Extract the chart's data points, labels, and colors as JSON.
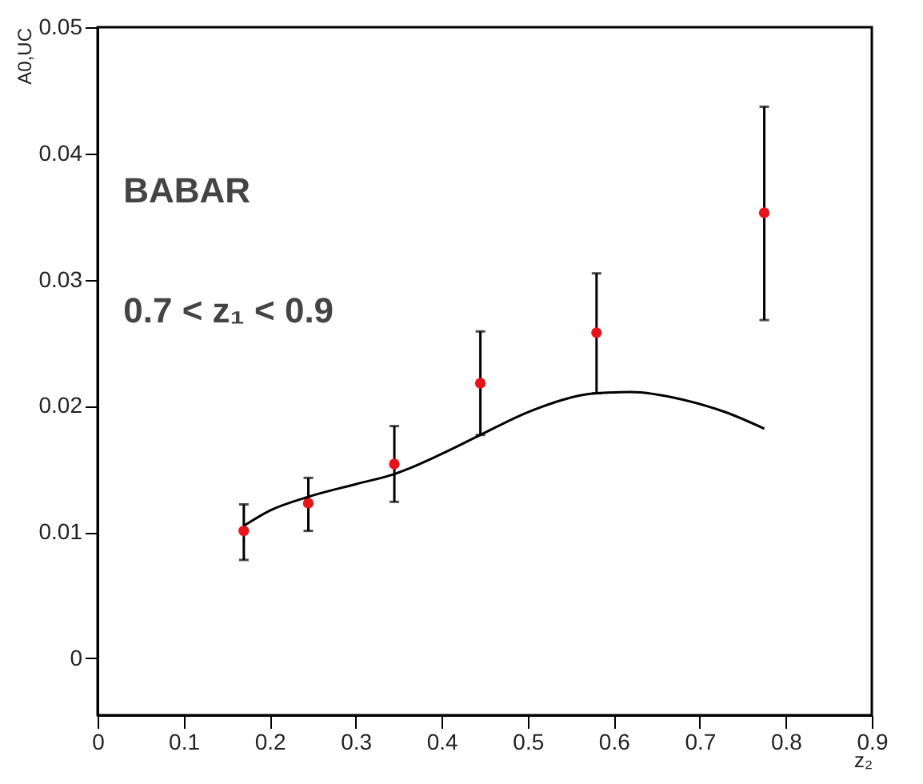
{
  "chart_data": {
    "type": "scatter",
    "xlabel": "z₂",
    "ylabel": "A0,UC",
    "annotations": [
      "BABAR",
      "0.7 < z₁ < 0.9"
    ],
    "xlim": [
      0,
      0.9
    ],
    "xticks": [
      0,
      0.1,
      0.2,
      0.3,
      0.4,
      0.5,
      0.6,
      0.7,
      0.8,
      0.9
    ],
    "ylim": [
      -0.0045,
      0.05
    ],
    "yticks": [
      0,
      0.01,
      0.02,
      0.03,
      0.04,
      0.05
    ],
    "grid": false,
    "marker": "circle",
    "series": [
      {
        "color": "#e8141c",
        "x": [
          0.17,
          0.245,
          0.345,
          0.445,
          0.58,
          0.775
        ],
        "values": [
          0.0101,
          0.0123,
          0.0154,
          0.0218,
          0.0258,
          0.0353
        ],
        "errors": [
          [
            0.0078,
            0.0122
          ],
          [
            0.0101,
            0.0143
          ],
          [
            0.0124,
            0.0184
          ],
          [
            0.0177,
            0.0259
          ],
          [
            0.021,
            0.0305
          ],
          [
            0.0268,
            0.0437
          ]
        ]
      },
      {
        "type": "line",
        "color": "#000000",
        "line_style": "solid",
        "marker": "none",
        "x": [
          0.17,
          0.2,
          0.245,
          0.3,
          0.345,
          0.4,
          0.445,
          0.5,
          0.58,
          0.62,
          0.68,
          0.73,
          0.775
        ],
        "values": [
          0.0105,
          0.0117,
          0.0128,
          0.0138,
          0.0146,
          0.0162,
          0.0177,
          0.0195,
          0.021,
          0.0211,
          0.0205,
          0.0195,
          0.0182
        ]
      }
    ]
  }
}
